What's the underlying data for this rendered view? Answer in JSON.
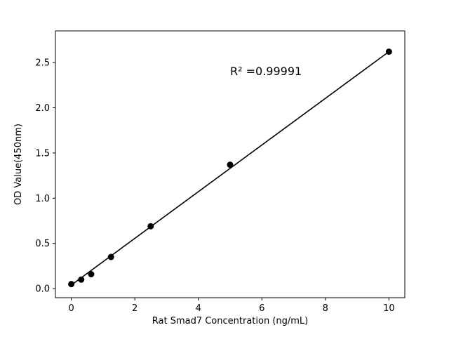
{
  "figure": {
    "background": "#ffffff"
  },
  "chart_data": {
    "type": "scatter",
    "title": "",
    "xlabel": "Rat Smad7 Concentration (ng/mL)",
    "ylabel": "OD Value(450nm)",
    "x": [
      0,
      0.3125,
      0.625,
      1.25,
      2.5,
      5,
      10
    ],
    "y": [
      0.05,
      0.1,
      0.16,
      0.35,
      0.69,
      1.37,
      2.62
    ],
    "fit_line": {
      "x": [
        0,
        10
      ],
      "y": [
        0.04,
        2.62
      ]
    },
    "xlim": [
      -0.5,
      10.5
    ],
    "ylim": [
      -0.1,
      2.85
    ],
    "xticks": [
      0,
      2,
      4,
      6,
      8,
      10
    ],
    "yticks": [
      0.0,
      0.5,
      1.0,
      1.5,
      2.0,
      2.5
    ],
    "annotation": {
      "text": "R² =0.99991",
      "x": 5.0,
      "y": 2.36
    },
    "marker_color": "#000000",
    "line_color": "#000000",
    "axis_color": "#000000",
    "grid": false,
    "legend": "none"
  }
}
